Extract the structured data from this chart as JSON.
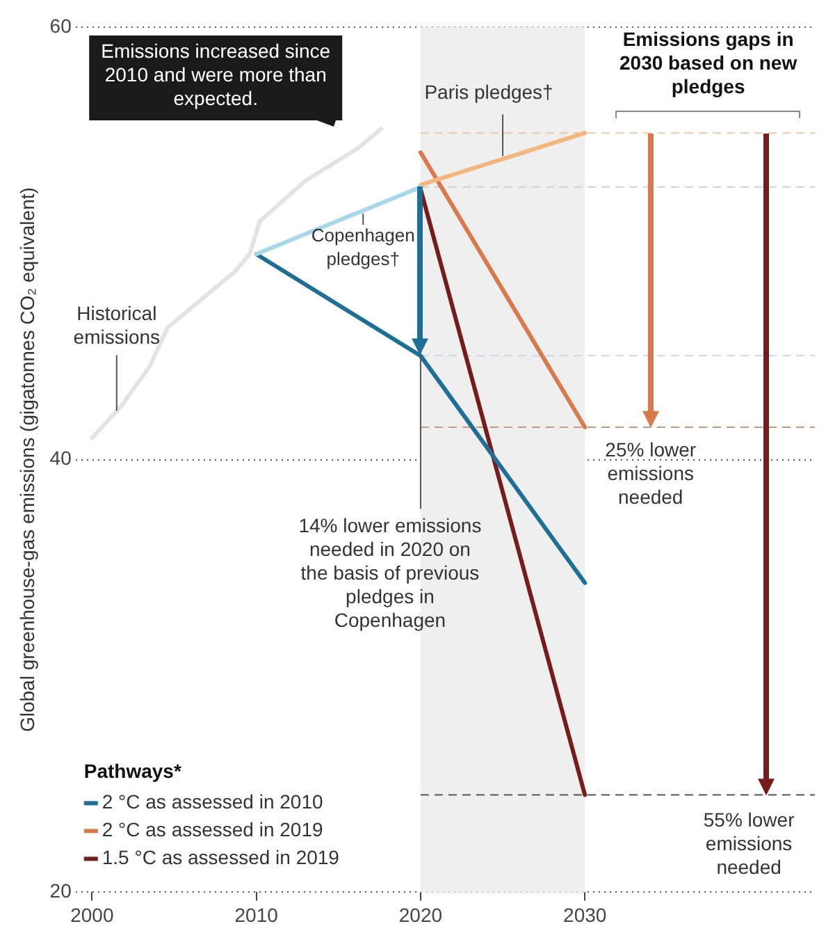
{
  "chart_data": {
    "type": "line",
    "title": "Emissions gaps in 2030 based on new pledges",
    "ylabel": "Global greenhouse-gas emissions (gigatonnes CO₂ equivalent)",
    "legend_title": "Pathways*",
    "xlim": [
      1999,
      2044
    ],
    "xticks": [
      2000,
      2010,
      2020,
      2030
    ],
    "ylim": [
      20,
      60
    ],
    "yticks": [
      20,
      40,
      60
    ],
    "grid": "y",
    "legend": "bottom left",
    "marker": "none",
    "line_style": "solid",
    "series": [
      {
        "color": "#e3e3e3",
        "x": [
          2000,
          2001.8,
          2003.5,
          2004.6,
          2008.7,
          2009.6,
          2010.2,
          2013,
          2016.2,
          2017.6
        ],
        "values": [
          41.0,
          42.5,
          44.3,
          46.1,
          48.7,
          49.5,
          51.0,
          52.9,
          54.4,
          55.3
        ]
      },
      {
        "color": "#a8d8ea",
        "x": [
          2010,
          2020
        ],
        "values": [
          49.5,
          52.6
        ]
      },
      {
        "color": "#f3b77e",
        "x": [
          2020,
          2030
        ],
        "values": [
          52.7,
          55.1
        ]
      },
      {
        "name": "2 °C as assessed in 2010",
        "color": "#1f6e96",
        "x": [
          2010,
          2020,
          2030
        ],
        "values": [
          49.5,
          44.8,
          34.3
        ]
      },
      {
        "name": "2 °C as assessed in 2019",
        "color": "#d77a4c",
        "x": [
          2020,
          2030
        ],
        "values": [
          54.2,
          41.5
        ]
      },
      {
        "name": "1.5 °C as assessed in 2019",
        "color": "#751c1c",
        "x": [
          2020,
          2030
        ],
        "values": [
          52.5,
          24.5
        ]
      }
    ],
    "bands": [
      {
        "axis": "x",
        "from": 2020,
        "to": 2030,
        "color": "#efefef"
      }
    ],
    "ref_lines": [
      {
        "axis": "y",
        "value": 55.1,
        "color": "#e8c9a8",
        "line_style": "dashed"
      },
      {
        "axis": "y",
        "value": 52.6,
        "color": "#d0d0d0",
        "line_style": "dashed"
      },
      {
        "axis": "y",
        "value": 44.8,
        "color": "#c8d8e4",
        "line_style": "dashed"
      },
      {
        "axis": "y",
        "value": 41.5,
        "color": "#c89a80",
        "line_style": "dashed"
      },
      {
        "axis": "y",
        "value": 24.5,
        "color": "#555555",
        "line_style": "dashed"
      }
    ],
    "annotations": [
      {
        "text": "Emissions increased since 2010 and were more than expected.",
        "x": 2017.6,
        "y": 55.3
      },
      {
        "text": "Historical emissions",
        "x": 2001.5,
        "y": 42.0
      },
      {
        "text": "Copenhagen pledges†",
        "x": 2016.5,
        "y": 51.5
      },
      {
        "text": "Paris pledges†",
        "x": 2025,
        "y": 53.9
      },
      {
        "text": "14% lower emissions needed in 2020 on the basis of previous pledges in Copenhagen",
        "x": 2020,
        "y": 44.8
      },
      {
        "text": "25% lower emissions needed",
        "x": 2034,
        "y": 41.5
      },
      {
        "text": "55% lower emissions needed",
        "x": 2041,
        "y": 24.5
      }
    ]
  }
}
